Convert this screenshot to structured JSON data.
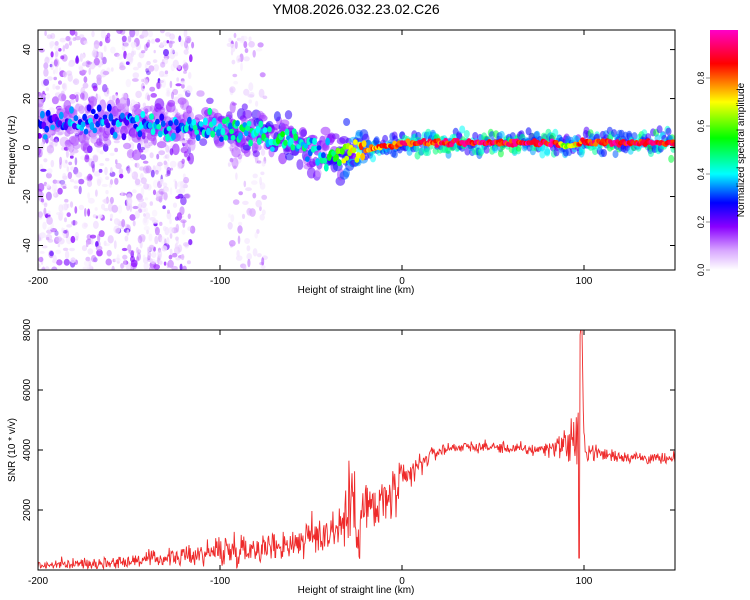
{
  "chart_data": [
    {
      "type": "heatmap",
      "title": "YM08.2026.032.23.02.C26",
      "xlabel": "Height of straight line (km)",
      "ylabel": "Frequency (Hz)",
      "xlim": [
        -200,
        150
      ],
      "ylim": [
        -50,
        48
      ],
      "x_ticks": [
        -200,
        -100,
        0,
        100
      ],
      "y_ticks": [
        -40,
        -20,
        0,
        20,
        40
      ],
      "colorbar": {
        "label": "Normalized spectral amplitude",
        "range": [
          0.0,
          1.0
        ],
        "ticks": [
          "0.0",
          "0.2",
          "0.4",
          "0.6",
          "0.8"
        ],
        "colors": [
          "#ffffff",
          "#d9a8ff",
          "#8a00ff",
          "#0000ff",
          "#00ffff",
          "#00ff00",
          "#ffff00",
          "#ff0000",
          "#ff00c8"
        ]
      },
      "ridge": {
        "x": [
          -200,
          -180,
          -160,
          -140,
          -120,
          -100,
          -80,
          -60,
          -45,
          -35,
          -25,
          -15,
          -5,
          0,
          20,
          60,
          85,
          90,
          95,
          100,
          120,
          150
        ],
        "frequency": [
          10,
          11,
          10,
          9,
          8,
          8,
          6,
          2,
          -2,
          -4,
          -2,
          0,
          1,
          2,
          2,
          2,
          2,
          1,
          1,
          2,
          2,
          2
        ],
        "amplitude": [
          0.25,
          0.3,
          0.3,
          0.35,
          0.35,
          0.4,
          0.45,
          0.45,
          0.35,
          0.55,
          0.75,
          0.8,
          0.8,
          0.85,
          0.85,
          0.9,
          0.9,
          0.6,
          0.7,
          0.85,
          0.9,
          0.9
        ]
      },
      "scatter_region": {
        "x_range": [
          -200,
          -115
        ],
        "x_range_2": [
          -95,
          -75
        ]
      }
    },
    {
      "type": "line",
      "xlabel": "Height of straight line (km)",
      "ylabel": "SNR (10 * v/v)",
      "xlim": [
        -200,
        150
      ],
      "ylim": [
        0,
        8000
      ],
      "x_ticks": [
        -200,
        -100,
        0,
        100
      ],
      "y_ticks": [
        2000,
        4000,
        6000,
        8000
      ],
      "series": [
        {
          "name": "SNR",
          "color": "#ee2a2a",
          "x": [
            -200,
            -180,
            -160,
            -140,
            -120,
            -110,
            -100,
            -90,
            -80,
            -70,
            -60,
            -55,
            -50,
            -45,
            -40,
            -35,
            -30,
            -28,
            -25,
            -20,
            -15,
            -10,
            -5,
            0,
            5,
            10,
            15,
            20,
            25,
            30,
            40,
            50,
            60,
            70,
            80,
            85,
            90,
            95,
            97,
            99,
            100,
            105,
            110,
            120,
            130,
            140,
            150
          ],
          "y": [
            150,
            200,
            250,
            350,
            450,
            550,
            650,
            700,
            750,
            800,
            900,
            1000,
            1100,
            1200,
            1300,
            1450,
            1800,
            2600,
            1500,
            2200,
            1900,
            2300,
            2500,
            2800,
            3200,
            3500,
            3800,
            3950,
            4050,
            4100,
            4100,
            4100,
            4050,
            4000,
            4050,
            4150,
            4200,
            4350,
            4600,
            6500,
            4100,
            3950,
            3850,
            3800,
            3750,
            3700,
            3650
          ],
          "spread": [
            120,
            120,
            150,
            180,
            220,
            300,
            400,
            400,
            350,
            350,
            400,
            450,
            500,
            550,
            550,
            700,
            1300,
            900,
            900,
            800,
            800,
            700,
            650,
            600,
            400,
            300,
            200,
            150,
            150,
            130,
            130,
            130,
            150,
            150,
            180,
            250,
            400,
            900,
            1500,
            1500,
            400,
            200,
            200,
            150,
            150,
            150,
            150
          ]
        }
      ]
    }
  ]
}
